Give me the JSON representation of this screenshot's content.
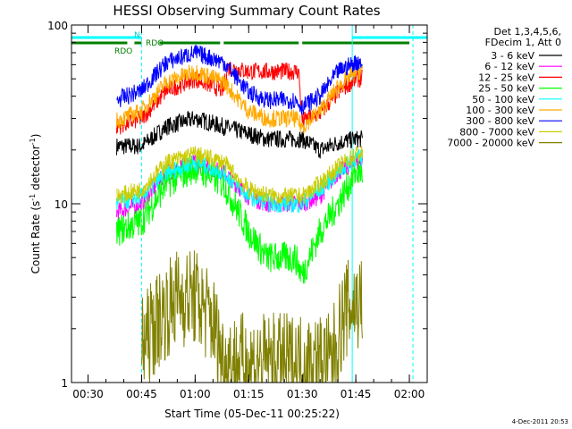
{
  "chart_data": {
    "type": "line",
    "title": "HESSI Observing Summary Count Rates",
    "xlabel": "Start Time (05-Dec-11 00:25:22)",
    "ylabel_main": "Count Rate (s",
    "ylabel_sup1": "-1",
    "ylabel_mid": " detector",
    "ylabel_sup2": "-1",
    "ylabel_end": ")",
    "yscale": "log",
    "xlim": [
      "00:25:22",
      "02:05:00"
    ],
    "ylim": [
      1,
      100
    ],
    "x_ticks": [
      "00:30",
      "00:45",
      "01:00",
      "01:15",
      "01:30",
      "01:45",
      "02:00"
    ],
    "y_ticks": [
      "1",
      "10",
      "100"
    ],
    "legend_header": [
      "Det 1,3,4,5,6,",
      "FDecim 1, Att 0"
    ],
    "footer": "4-Dec-2011 20:53",
    "series": [
      {
        "name": "3 - 6 keV",
        "color": "#000000",
        "points": [
          [
            "00:38",
            21
          ],
          [
            "00:45",
            21
          ],
          [
            "00:52",
            27
          ],
          [
            "01:00",
            30
          ],
          [
            "01:08",
            27
          ],
          [
            "01:20",
            23
          ],
          [
            "01:30",
            23
          ],
          [
            "01:35",
            20
          ],
          [
            "01:40",
            22
          ],
          [
            "01:45",
            23
          ],
          [
            "01:47",
            23
          ]
        ]
      },
      {
        "name": "6 - 12 keV",
        "color": "#ff00ff",
        "points": [
          [
            "00:38",
            9
          ],
          [
            "00:45",
            10
          ],
          [
            "00:52",
            15
          ],
          [
            "01:00",
            17
          ],
          [
            "01:08",
            15
          ],
          [
            "01:15",
            11
          ],
          [
            "01:20",
            10
          ],
          [
            "01:30",
            10
          ],
          [
            "01:35",
            11
          ],
          [
            "01:40",
            15
          ],
          [
            "01:45",
            17
          ],
          [
            "01:47",
            17
          ]
        ]
      },
      {
        "name": "12 - 25 keV",
        "color": "#ff0000",
        "points": [
          [
            "00:38",
            27
          ],
          [
            "00:45",
            30
          ],
          [
            "00:52",
            43
          ],
          [
            "01:00",
            50
          ],
          [
            "01:08",
            43
          ],
          [
            "01:09",
            58
          ],
          [
            "01:15",
            55
          ],
          [
            "01:25",
            55
          ],
          [
            "01:29",
            55
          ],
          [
            "01:30",
            29
          ],
          [
            "01:35",
            32
          ],
          [
            "01:40",
            42
          ],
          [
            "01:45",
            50
          ],
          [
            "01:47",
            50
          ]
        ]
      },
      {
        "name": "25 - 50 keV",
        "color": "#00ff00",
        "points": [
          [
            "00:38",
            7
          ],
          [
            "00:45",
            8
          ],
          [
            "00:52",
            13
          ],
          [
            "01:00",
            16
          ],
          [
            "01:08",
            13
          ],
          [
            "01:15",
            7
          ],
          [
            "01:20",
            5
          ],
          [
            "01:28",
            5
          ],
          [
            "01:30",
            4
          ],
          [
            "01:35",
            7
          ],
          [
            "01:40",
            10
          ],
          [
            "01:45",
            15
          ],
          [
            "01:47",
            15
          ]
        ]
      },
      {
        "name": "50 - 100 keV",
        "color": "#00ffff",
        "points": [
          [
            "00:38",
            10
          ],
          [
            "00:45",
            11
          ],
          [
            "00:52",
            15
          ],
          [
            "01:00",
            17
          ],
          [
            "01:08",
            15
          ],
          [
            "01:15",
            11
          ],
          [
            "01:22",
            10
          ],
          [
            "01:30",
            10
          ],
          [
            "01:35",
            12
          ],
          [
            "01:40",
            15
          ],
          [
            "01:45",
            18
          ],
          [
            "01:47",
            18
          ]
        ]
      },
      {
        "name": "100 - 300 keV",
        "color": "#ffaa00",
        "points": [
          [
            "00:38",
            29
          ],
          [
            "00:45",
            33
          ],
          [
            "00:52",
            48
          ],
          [
            "01:00",
            55
          ],
          [
            "01:08",
            48
          ],
          [
            "01:15",
            33
          ],
          [
            "01:20",
            30
          ],
          [
            "01:28",
            30
          ],
          [
            "01:30",
            27
          ],
          [
            "01:35",
            33
          ],
          [
            "01:40",
            45
          ],
          [
            "01:45",
            55
          ],
          [
            "01:47",
            55
          ]
        ]
      },
      {
        "name": "300 - 800 keV",
        "color": "#0000ff",
        "points": [
          [
            "00:38",
            38
          ],
          [
            "00:45",
            43
          ],
          [
            "00:52",
            62
          ],
          [
            "01:00",
            70
          ],
          [
            "01:08",
            62
          ],
          [
            "01:15",
            42
          ],
          [
            "01:20",
            38
          ],
          [
            "01:28",
            38
          ],
          [
            "01:30",
            35
          ],
          [
            "01:35",
            40
          ],
          [
            "01:40",
            55
          ],
          [
            "01:45",
            62
          ],
          [
            "01:47",
            62
          ]
        ]
      },
      {
        "name": "800 - 7000 keV",
        "color": "#cccc00",
        "points": [
          [
            "00:38",
            11
          ],
          [
            "00:45",
            12
          ],
          [
            "00:52",
            17
          ],
          [
            "01:00",
            19
          ],
          [
            "01:08",
            17
          ],
          [
            "01:15",
            12
          ],
          [
            "01:22",
            11
          ],
          [
            "01:30",
            11
          ],
          [
            "01:35",
            13
          ],
          [
            "01:40",
            16
          ],
          [
            "01:45",
            19
          ],
          [
            "01:47",
            19
          ]
        ]
      },
      {
        "name": "7000 - 20000 keV",
        "color": "#808000",
        "points": [
          [
            "00:45",
            1.6
          ],
          [
            "00:50",
            2.3
          ],
          [
            "00:55",
            3.0
          ],
          [
            "01:00",
            3.0
          ],
          [
            "01:05",
            2.2
          ],
          [
            "01:08",
            1.3
          ],
          [
            "01:38",
            1.3
          ],
          [
            "01:42",
            2.5
          ],
          [
            "01:45",
            2.8
          ],
          [
            "01:47",
            2.8
          ]
        ]
      }
    ],
    "flags": [
      {
        "name": "RDO",
        "color": "#008000",
        "segments": [
          [
            "00:25:22",
            "00:41"
          ],
          [
            "00:43",
            "00:45"
          ],
          [
            "00:50",
            "01:07"
          ],
          [
            "01:08",
            "01:29"
          ],
          [
            "01:30",
            "02:00"
          ]
        ]
      },
      {
        "name": "N",
        "color": "#00ffff",
        "segments": [
          [
            "00:25:22",
            "00:45"
          ],
          [
            "01:44",
            "02:05"
          ]
        ]
      }
    ],
    "flag_labels": [
      "RDO",
      "RDO",
      "N"
    ],
    "vlines": [
      {
        "t": "00:25:22",
        "style": "solid",
        "color": "#00ffff"
      },
      {
        "t": "00:45",
        "style": "dashed",
        "color": "#00ffff"
      },
      {
        "t": "01:44",
        "style": "solid",
        "color": "#00ffff"
      },
      {
        "t": "02:01",
        "style": "dashed",
        "color": "#00ffff"
      }
    ]
  }
}
